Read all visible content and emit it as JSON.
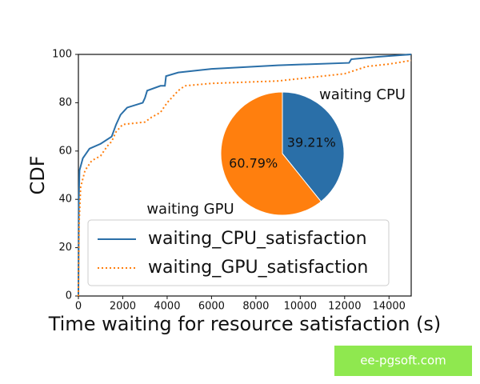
{
  "chart_data": [
    {
      "type": "line",
      "xlabel": "Time waiting for resource satisfaction (s)",
      "ylabel": "CDF",
      "xlim": [
        0,
        15000
      ],
      "ylim": [
        0,
        100
      ],
      "xticks": [
        0,
        2000,
        4000,
        6000,
        8000,
        10000,
        12000,
        14000
      ],
      "yticks": [
        0,
        20,
        40,
        60,
        80,
        100
      ],
      "legend": "lower-right",
      "series": [
        {
          "name": "waiting_CPU_satisfaction",
          "color": "#2a6fa8",
          "linestyle": "solid",
          "x": [
            0,
            20,
            50,
            200,
            500,
            1000,
            1500,
            1700,
            1900,
            2100,
            2200,
            2900,
            3000,
            3100,
            3700,
            3900,
            3950,
            4500,
            6000,
            9000,
            12200,
            12300,
            13500,
            15000
          ],
          "values": [
            0,
            40,
            52,
            57,
            61,
            63,
            66,
            71,
            75,
            77,
            78,
            80,
            82,
            85,
            87,
            87,
            91,
            92.5,
            94,
            95.5,
            96.5,
            98,
            99,
            100
          ]
        },
        {
          "name": "waiting_GPU_satisfaction",
          "color": "#ff7f0e",
          "linestyle": "dotted",
          "x": [
            0,
            30,
            100,
            300,
            600,
            1000,
            1300,
            1500,
            1700,
            1900,
            2000,
            3000,
            3300,
            3700,
            4000,
            4300,
            4500,
            4800,
            6000,
            9000,
            12000,
            13000,
            14000,
            15000
          ],
          "values": [
            0,
            30,
            45,
            52,
            56,
            58,
            62,
            64,
            68,
            70,
            71,
            72,
            74,
            76,
            80,
            83,
            85,
            87,
            88,
            89,
            92,
            95,
            96,
            97.5
          ]
        }
      ]
    },
    {
      "type": "pie",
      "categories": [
        "waiting CPU",
        "waiting GPU"
      ],
      "values": [
        39.21,
        60.79
      ],
      "value_labels": [
        "39.21%",
        "60.79%"
      ],
      "colors": [
        "#2a6fa8",
        "#ff7f0e"
      ]
    }
  ],
  "watermark": "ee-pgsoft.com"
}
